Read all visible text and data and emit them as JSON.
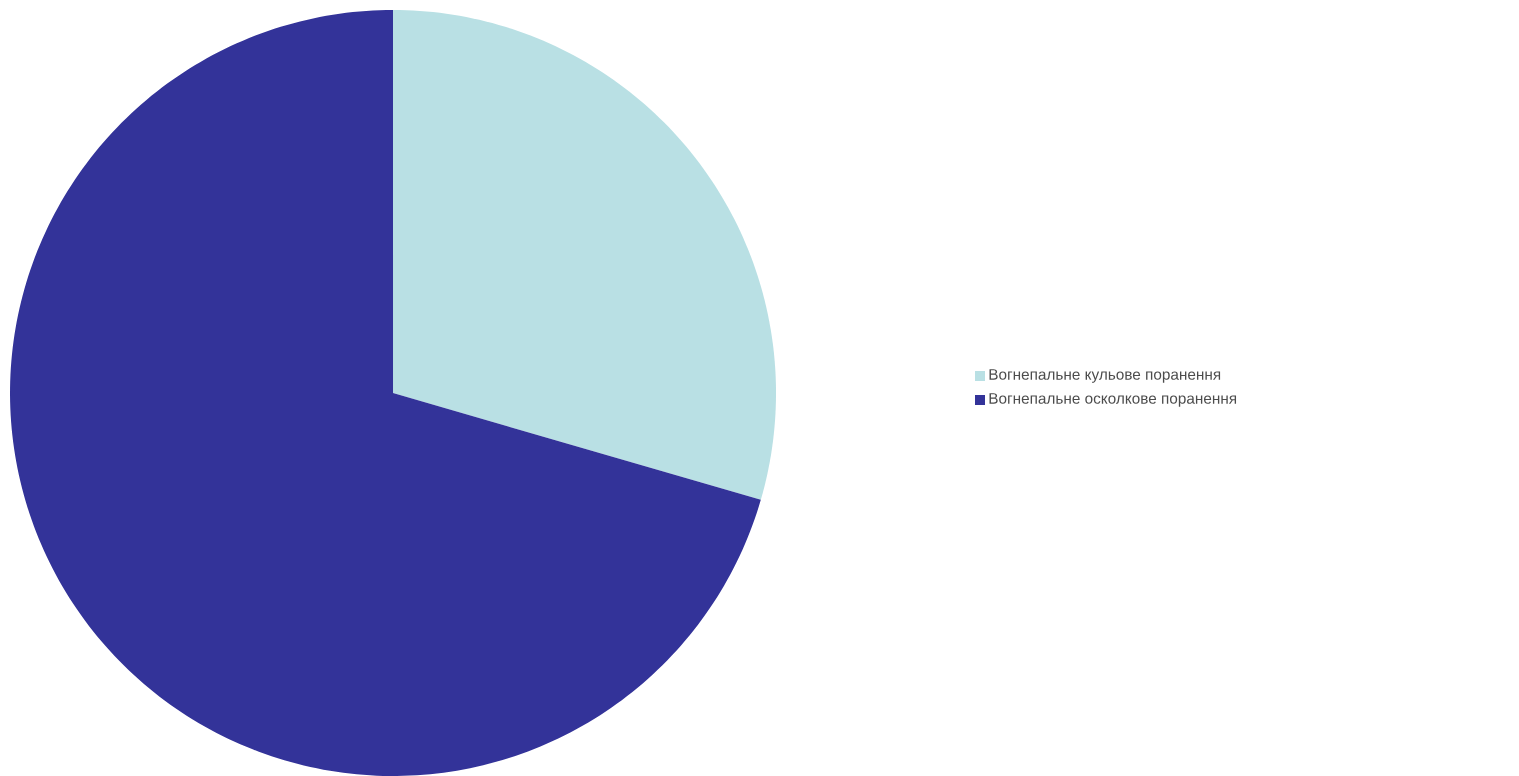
{
  "chart_data": {
    "type": "pie",
    "categories": [
      "Вогнепальне кульове поранення",
      "Вогнепальне осколкове поранення"
    ],
    "values": [
      29.5,
      70.5
    ],
    "colors": [
      "#b9e0e4",
      "#333399"
    ],
    "legend": "right"
  }
}
